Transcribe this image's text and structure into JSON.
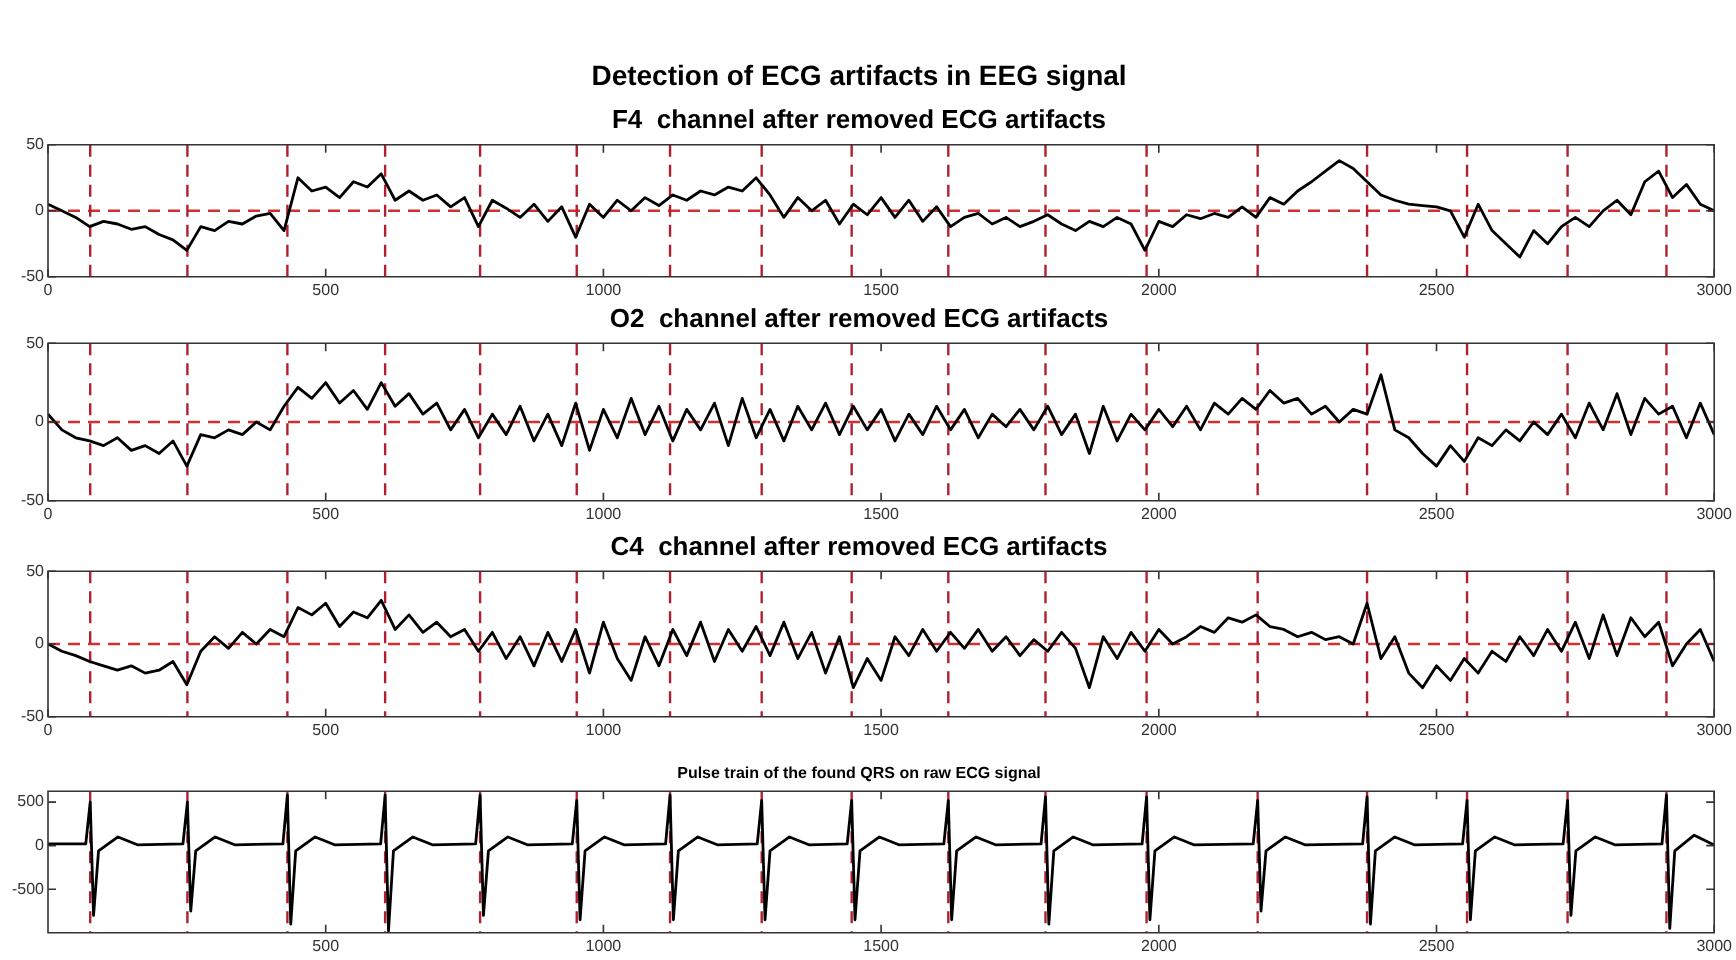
{
  "chart_data": [
    {
      "type": "line",
      "title": "Detection of ECG artifacts in EEG signal",
      "subtitle": "F4  channel after removed ECG artifacts",
      "legend": false,
      "marker": "none",
      "x": [
        0,
        25,
        50,
        75,
        100,
        125,
        150,
        175,
        200,
        225,
        250,
        275,
        300,
        325,
        350,
        375,
        400,
        425,
        450,
        475,
        500,
        525,
        550,
        575,
        600,
        625,
        650,
        675,
        700,
        725,
        750,
        775,
        800,
        825,
        850,
        875,
        900,
        925,
        950,
        975,
        1000,
        1025,
        1050,
        1075,
        1100,
        1125,
        1150,
        1175,
        1200,
        1225,
        1250,
        1275,
        1300,
        1325,
        1350,
        1375,
        1400,
        1425,
        1450,
        1475,
        1500,
        1525,
        1550,
        1575,
        1600,
        1625,
        1650,
        1675,
        1700,
        1725,
        1750,
        1775,
        1800,
        1825,
        1850,
        1875,
        1900,
        1925,
        1950,
        1975,
        2000,
        2025,
        2050,
        2075,
        2100,
        2125,
        2150,
        2175,
        2200,
        2225,
        2250,
        2275,
        2300,
        2325,
        2350,
        2375,
        2400,
        2425,
        2450,
        2475,
        2500,
        2525,
        2550,
        2575,
        2600,
        2625,
        2650,
        2675,
        2700,
        2725,
        2750,
        2775,
        2800,
        2825,
        2850,
        2875,
        2900,
        2925,
        2950,
        2975,
        3000
      ],
      "series": [
        {
          "color": "#000000",
          "values": [
            5,
            0,
            -5,
            -12,
            -8,
            -10,
            -14,
            -12,
            -18,
            -22,
            -30,
            -12,
            -15,
            -8,
            -10,
            -4,
            -2,
            -15,
            25,
            15,
            18,
            10,
            22,
            18,
            28,
            8,
            15,
            8,
            12,
            3,
            10,
            -12,
            8,
            2,
            -5,
            5,
            -8,
            3,
            -20,
            5,
            -5,
            8,
            0,
            10,
            4,
            12,
            8,
            15,
            12,
            18,
            15,
            25,
            12,
            -5,
            10,
            0,
            8,
            -10,
            5,
            -3,
            10,
            -5,
            8,
            -8,
            3,
            -12,
            -5,
            -2,
            -10,
            -5,
            -12,
            -8,
            -3,
            -10,
            -15,
            -8,
            -12,
            -5,
            -10,
            -30,
            -8,
            -12,
            -3,
            -6,
            -2,
            -5,
            3,
            -5,
            10,
            5,
            15,
            22,
            30,
            38,
            32,
            22,
            12,
            8,
            5,
            4,
            3,
            0,
            -20,
            5,
            -15,
            -25,
            -35,
            -15,
            -25,
            -12,
            -5,
            -12,
            0,
            8,
            -3,
            22,
            30,
            10,
            20,
            5,
            0
          ]
        }
      ],
      "xlim": [
        0,
        3000
      ],
      "xticks": [
        0,
        500,
        1000,
        1500,
        2000,
        2500,
        3000
      ],
      "ylim": [
        -50,
        50
      ],
      "yticks": [
        -50,
        0,
        50
      ],
      "ref_lines": [
        {
          "axis": "y",
          "value": 0,
          "color": "#d03030",
          "line_style": "dashed"
        },
        {
          "axis": "x",
          "value": 76,
          "color": "#b02030",
          "line_style": "dashed"
        },
        {
          "axis": "x",
          "value": 251,
          "color": "#b02030",
          "line_style": "dashed"
        },
        {
          "axis": "x",
          "value": 431,
          "color": "#b02030",
          "line_style": "dashed"
        },
        {
          "axis": "x",
          "value": 607,
          "color": "#b02030",
          "line_style": "dashed"
        },
        {
          "axis": "x",
          "value": 778,
          "color": "#b02030",
          "line_style": "dashed"
        },
        {
          "axis": "x",
          "value": 952,
          "color": "#b02030",
          "line_style": "dashed"
        },
        {
          "axis": "x",
          "value": 1120,
          "color": "#b02030",
          "line_style": "dashed"
        },
        {
          "axis": "x",
          "value": 1285,
          "color": "#b02030",
          "line_style": "dashed"
        },
        {
          "axis": "x",
          "value": 1447,
          "color": "#b02030",
          "line_style": "dashed"
        },
        {
          "axis": "x",
          "value": 1621,
          "color": "#b02030",
          "line_style": "dashed"
        },
        {
          "axis": "x",
          "value": 1796,
          "color": "#b02030",
          "line_style": "dashed"
        },
        {
          "axis": "x",
          "value": 1978,
          "color": "#b02030",
          "line_style": "dashed"
        },
        {
          "axis": "x",
          "value": 2178,
          "color": "#b02030",
          "line_style": "dashed"
        },
        {
          "axis": "x",
          "value": 2375,
          "color": "#b02030",
          "line_style": "dashed"
        },
        {
          "axis": "x",
          "value": 2555,
          "color": "#b02030",
          "line_style": "dashed"
        },
        {
          "axis": "x",
          "value": 2736,
          "color": "#b02030",
          "line_style": "dashed"
        },
        {
          "axis": "x",
          "value": 2914,
          "color": "#b02030",
          "line_style": "dashed"
        }
      ]
    },
    {
      "type": "line",
      "title": "O2  channel after removed ECG artifacts",
      "legend": false,
      "marker": "none",
      "x": [
        0,
        25,
        50,
        75,
        100,
        125,
        150,
        175,
        200,
        225,
        250,
        275,
        300,
        325,
        350,
        375,
        400,
        425,
        450,
        475,
        500,
        525,
        550,
        575,
        600,
        625,
        650,
        675,
        700,
        725,
        750,
        775,
        800,
        825,
        850,
        875,
        900,
        925,
        950,
        975,
        1000,
        1025,
        1050,
        1075,
        1100,
        1125,
        1150,
        1175,
        1200,
        1225,
        1250,
        1275,
        1300,
        1325,
        1350,
        1375,
        1400,
        1425,
        1450,
        1475,
        1500,
        1525,
        1550,
        1575,
        1600,
        1625,
        1650,
        1675,
        1700,
        1725,
        1750,
        1775,
        1800,
        1825,
        1850,
        1875,
        1900,
        1925,
        1950,
        1975,
        2000,
        2025,
        2050,
        2075,
        2100,
        2125,
        2150,
        2175,
        2200,
        2225,
        2250,
        2275,
        2300,
        2325,
        2350,
        2375,
        2400,
        2425,
        2450,
        2475,
        2500,
        2525,
        2550,
        2575,
        2600,
        2625,
        2650,
        2675,
        2700,
        2725,
        2750,
        2775,
        2800,
        2825,
        2850,
        2875,
        2900,
        2925,
        2950,
        2975,
        3000
      ],
      "series": [
        {
          "color": "#000000",
          "values": [
            5,
            -5,
            -10,
            -12,
            -15,
            -10,
            -18,
            -15,
            -20,
            -12,
            -28,
            -8,
            -10,
            -5,
            -8,
            0,
            -5,
            10,
            22,
            15,
            25,
            12,
            20,
            8,
            25,
            10,
            18,
            5,
            12,
            -5,
            8,
            -10,
            5,
            -8,
            10,
            -12,
            5,
            -15,
            12,
            -18,
            8,
            -10,
            15,
            -8,
            10,
            -12,
            8,
            -5,
            12,
            -15,
            15,
            -10,
            8,
            -12,
            10,
            -5,
            12,
            -8,
            10,
            -5,
            8,
            -12,
            5,
            -8,
            10,
            -5,
            8,
            -10,
            5,
            -3,
            8,
            -5,
            10,
            -8,
            5,
            -20,
            10,
            -12,
            5,
            -5,
            8,
            -3,
            10,
            -5,
            12,
            5,
            15,
            8,
            20,
            12,
            15,
            5,
            10,
            0,
            8,
            5,
            30,
            -5,
            -10,
            -20,
            -28,
            -15,
            -25,
            -10,
            -15,
            -5,
            -12,
            0,
            -8,
            5,
            -10,
            12,
            -5,
            18,
            -8,
            15,
            5,
            10,
            -10,
            12,
            -8
          ]
        }
      ],
      "xlim": [
        0,
        3000
      ],
      "xticks": [
        0,
        500,
        1000,
        1500,
        2000,
        2500,
        3000
      ],
      "ylim": [
        -50,
        50
      ],
      "yticks": [
        -50,
        0,
        50
      ],
      "ref_lines": [
        {
          "axis": "y",
          "value": 0,
          "color": "#d03030",
          "line_style": "dashed"
        },
        {
          "axis": "x",
          "value": 76,
          "color": "#b02030",
          "line_style": "dashed"
        },
        {
          "axis": "x",
          "value": 251,
          "color": "#b02030",
          "line_style": "dashed"
        },
        {
          "axis": "x",
          "value": 431,
          "color": "#b02030",
          "line_style": "dashed"
        },
        {
          "axis": "x",
          "value": 607,
          "color": "#b02030",
          "line_style": "dashed"
        },
        {
          "axis": "x",
          "value": 778,
          "color": "#b02030",
          "line_style": "dashed"
        },
        {
          "axis": "x",
          "value": 952,
          "color": "#b02030",
          "line_style": "dashed"
        },
        {
          "axis": "x",
          "value": 1120,
          "color": "#b02030",
          "line_style": "dashed"
        },
        {
          "axis": "x",
          "value": 1285,
          "color": "#b02030",
          "line_style": "dashed"
        },
        {
          "axis": "x",
          "value": 1447,
          "color": "#b02030",
          "line_style": "dashed"
        },
        {
          "axis": "x",
          "value": 1621,
          "color": "#b02030",
          "line_style": "dashed"
        },
        {
          "axis": "x",
          "value": 1796,
          "color": "#b02030",
          "line_style": "dashed"
        },
        {
          "axis": "x",
          "value": 1978,
          "color": "#b02030",
          "line_style": "dashed"
        },
        {
          "axis": "x",
          "value": 2178,
          "color": "#b02030",
          "line_style": "dashed"
        },
        {
          "axis": "x",
          "value": 2375,
          "color": "#b02030",
          "line_style": "dashed"
        },
        {
          "axis": "x",
          "value": 2555,
          "color": "#b02030",
          "line_style": "dashed"
        },
        {
          "axis": "x",
          "value": 2736,
          "color": "#b02030",
          "line_style": "dashed"
        },
        {
          "axis": "x",
          "value": 2914,
          "color": "#b02030",
          "line_style": "dashed"
        }
      ]
    },
    {
      "type": "line",
      "title": "C4  channel after removed ECG artifacts",
      "legend": false,
      "marker": "none",
      "x": [
        0,
        25,
        50,
        75,
        100,
        125,
        150,
        175,
        200,
        225,
        250,
        275,
        300,
        325,
        350,
        375,
        400,
        425,
        450,
        475,
        500,
        525,
        550,
        575,
        600,
        625,
        650,
        675,
        700,
        725,
        750,
        775,
        800,
        825,
        850,
        875,
        900,
        925,
        950,
        975,
        1000,
        1025,
        1050,
        1075,
        1100,
        1125,
        1150,
        1175,
        1200,
        1225,
        1250,
        1275,
        1300,
        1325,
        1350,
        1375,
        1400,
        1425,
        1450,
        1475,
        1500,
        1525,
        1550,
        1575,
        1600,
        1625,
        1650,
        1675,
        1700,
        1725,
        1750,
        1775,
        1800,
        1825,
        1850,
        1875,
        1900,
        1925,
        1950,
        1975,
        2000,
        2025,
        2050,
        2075,
        2100,
        2125,
        2150,
        2175,
        2200,
        2225,
        2250,
        2275,
        2300,
        2325,
        2350,
        2375,
        2400,
        2425,
        2450,
        2475,
        2500,
        2525,
        2550,
        2575,
        2600,
        2625,
        2650,
        2675,
        2700,
        2725,
        2750,
        2775,
        2800,
        2825,
        2850,
        2875,
        2900,
        2925,
        2950,
        2975,
        3000
      ],
      "series": [
        {
          "color": "#000000",
          "values": [
            0,
            -5,
            -8,
            -12,
            -15,
            -18,
            -15,
            -20,
            -18,
            -12,
            -28,
            -5,
            5,
            -3,
            8,
            0,
            10,
            5,
            25,
            20,
            28,
            12,
            22,
            18,
            30,
            10,
            20,
            8,
            15,
            5,
            10,
            -5,
            8,
            -10,
            5,
            -15,
            8,
            -12,
            10,
            -20,
            15,
            -10,
            -25,
            5,
            -15,
            10,
            -8,
            15,
            -12,
            10,
            -5,
            12,
            -8,
            15,
            -10,
            8,
            -20,
            5,
            -30,
            -10,
            -25,
            5,
            -8,
            10,
            -5,
            8,
            -3,
            10,
            -5,
            5,
            -8,
            3,
            -5,
            8,
            -3,
            -30,
            5,
            -10,
            8,
            -5,
            10,
            0,
            5,
            12,
            8,
            18,
            15,
            20,
            12,
            10,
            5,
            8,
            3,
            5,
            0,
            28,
            -10,
            5,
            -20,
            -30,
            -15,
            -25,
            -10,
            -20,
            -5,
            -12,
            5,
            -8,
            10,
            -5,
            15,
            -10,
            20,
            -8,
            18,
            5,
            15,
            -15,
            0,
            10,
            -12
          ]
        }
      ],
      "xlim": [
        0,
        3000
      ],
      "xticks": [
        0,
        500,
        1000,
        1500,
        2000,
        2500,
        3000
      ],
      "ylim": [
        -50,
        50
      ],
      "yticks": [
        -50,
        0,
        50
      ],
      "ref_lines": [
        {
          "axis": "y",
          "value": 0,
          "color": "#d03030",
          "line_style": "dashed"
        },
        {
          "axis": "x",
          "value": 76,
          "color": "#b02030",
          "line_style": "dashed"
        },
        {
          "axis": "x",
          "value": 251,
          "color": "#b02030",
          "line_style": "dashed"
        },
        {
          "axis": "x",
          "value": 431,
          "color": "#b02030",
          "line_style": "dashed"
        },
        {
          "axis": "x",
          "value": 607,
          "color": "#b02030",
          "line_style": "dashed"
        },
        {
          "axis": "x",
          "value": 778,
          "color": "#b02030",
          "line_style": "dashed"
        },
        {
          "axis": "x",
          "value": 952,
          "color": "#b02030",
          "line_style": "dashed"
        },
        {
          "axis": "x",
          "value": 1120,
          "color": "#b02030",
          "line_style": "dashed"
        },
        {
          "axis": "x",
          "value": 1285,
          "color": "#b02030",
          "line_style": "dashed"
        },
        {
          "axis": "x",
          "value": 1447,
          "color": "#b02030",
          "line_style": "dashed"
        },
        {
          "axis": "x",
          "value": 1621,
          "color": "#b02030",
          "line_style": "dashed"
        },
        {
          "axis": "x",
          "value": 1796,
          "color": "#b02030",
          "line_style": "dashed"
        },
        {
          "axis": "x",
          "value": 1978,
          "color": "#b02030",
          "line_style": "dashed"
        },
        {
          "axis": "x",
          "value": 2178,
          "color": "#b02030",
          "line_style": "dashed"
        },
        {
          "axis": "x",
          "value": 2375,
          "color": "#b02030",
          "line_style": "dashed"
        },
        {
          "axis": "x",
          "value": 2555,
          "color": "#b02030",
          "line_style": "dashed"
        },
        {
          "axis": "x",
          "value": 2736,
          "color": "#b02030",
          "line_style": "dashed"
        },
        {
          "axis": "x",
          "value": 2914,
          "color": "#b02030",
          "line_style": "dashed"
        }
      ]
    },
    {
      "type": "line",
      "title": "Pulse train of the found QRS on raw ECG signal",
      "legend": false,
      "marker": "none",
      "x": [
        0,
        68,
        76,
        82,
        91,
        126,
        161,
        243,
        251,
        257,
        266,
        301,
        336,
        423,
        431,
        437,
        446,
        481,
        516,
        599,
        607,
        613,
        622,
        657,
        692,
        770,
        778,
        784,
        793,
        828,
        863,
        944,
        952,
        958,
        967,
        1002,
        1037,
        1112,
        1120,
        1126,
        1135,
        1170,
        1205,
        1277,
        1285,
        1291,
        1300,
        1335,
        1370,
        1439,
        1447,
        1453,
        1462,
        1497,
        1532,
        1613,
        1621,
        1627,
        1636,
        1671,
        1706,
        1788,
        1796,
        1802,
        1811,
        1846,
        1881,
        1970,
        1978,
        1984,
        1993,
        2028,
        2063,
        2170,
        2178,
        2184,
        2193,
        2228,
        2263,
        2367,
        2375,
        2381,
        2390,
        2425,
        2460,
        2547,
        2555,
        2561,
        2570,
        2605,
        2640,
        2728,
        2736,
        2742,
        2751,
        2786,
        2821,
        2906,
        2914,
        2920,
        2929,
        2964,
        2999
      ],
      "series": [
        {
          "color": "#000000",
          "values": [
            20,
            20,
            500,
            -800,
            -60,
            100,
            10,
            20,
            500,
            -750,
            -60,
            100,
            10,
            20,
            580,
            -900,
            -60,
            100,
            10,
            20,
            580,
            -980,
            -60,
            100,
            10,
            20,
            580,
            -800,
            -60,
            100,
            10,
            20,
            520,
            -850,
            -60,
            100,
            10,
            20,
            580,
            -850,
            -60,
            100,
            10,
            20,
            520,
            -850,
            -60,
            100,
            10,
            20,
            520,
            -850,
            -60,
            100,
            10,
            20,
            520,
            -850,
            -60,
            100,
            10,
            20,
            560,
            -900,
            -60,
            100,
            10,
            20,
            560,
            -850,
            -60,
            100,
            10,
            20,
            520,
            -750,
            -60,
            100,
            10,
            20,
            560,
            -900,
            -60,
            100,
            10,
            20,
            520,
            -850,
            -60,
            100,
            10,
            20,
            520,
            -800,
            -60,
            100,
            10,
            20,
            580,
            -950,
            -60,
            120,
            10
          ]
        }
      ],
      "xlim": [
        0,
        3000
      ],
      "xticks": [
        500,
        1000,
        1500,
        2000,
        2500,
        3000
      ],
      "ylim": [
        -1000,
        625
      ],
      "yticks": [
        -500,
        0,
        500
      ],
      "ref_lines": [
        {
          "axis": "x",
          "value": 76,
          "color": "#b02030",
          "line_style": "dashed"
        },
        {
          "axis": "x",
          "value": 251,
          "color": "#b02030",
          "line_style": "dashed"
        },
        {
          "axis": "x",
          "value": 431,
          "color": "#b02030",
          "line_style": "dashed"
        },
        {
          "axis": "x",
          "value": 607,
          "color": "#b02030",
          "line_style": "dashed"
        },
        {
          "axis": "x",
          "value": 778,
          "color": "#b02030",
          "line_style": "dashed"
        },
        {
          "axis": "x",
          "value": 952,
          "color": "#b02030",
          "line_style": "dashed"
        },
        {
          "axis": "x",
          "value": 1120,
          "color": "#b02030",
          "line_style": "dashed"
        },
        {
          "axis": "x",
          "value": 1285,
          "color": "#b02030",
          "line_style": "dashed"
        },
        {
          "axis": "x",
          "value": 1447,
          "color": "#b02030",
          "line_style": "dashed"
        },
        {
          "axis": "x",
          "value": 1621,
          "color": "#b02030",
          "line_style": "dashed"
        },
        {
          "axis": "x",
          "value": 1796,
          "color": "#b02030",
          "line_style": "dashed"
        },
        {
          "axis": "x",
          "value": 1978,
          "color": "#b02030",
          "line_style": "dashed"
        },
        {
          "axis": "x",
          "value": 2178,
          "color": "#b02030",
          "line_style": "dashed"
        },
        {
          "axis": "x",
          "value": 2375,
          "color": "#b02030",
          "line_style": "dashed"
        },
        {
          "axis": "x",
          "value": 2555,
          "color": "#b02030",
          "line_style": "dashed"
        },
        {
          "axis": "x",
          "value": 2736,
          "color": "#b02030",
          "line_style": "dashed"
        },
        {
          "axis": "x",
          "value": 2914,
          "color": "#b02030",
          "line_style": "dashed"
        }
      ]
    }
  ]
}
